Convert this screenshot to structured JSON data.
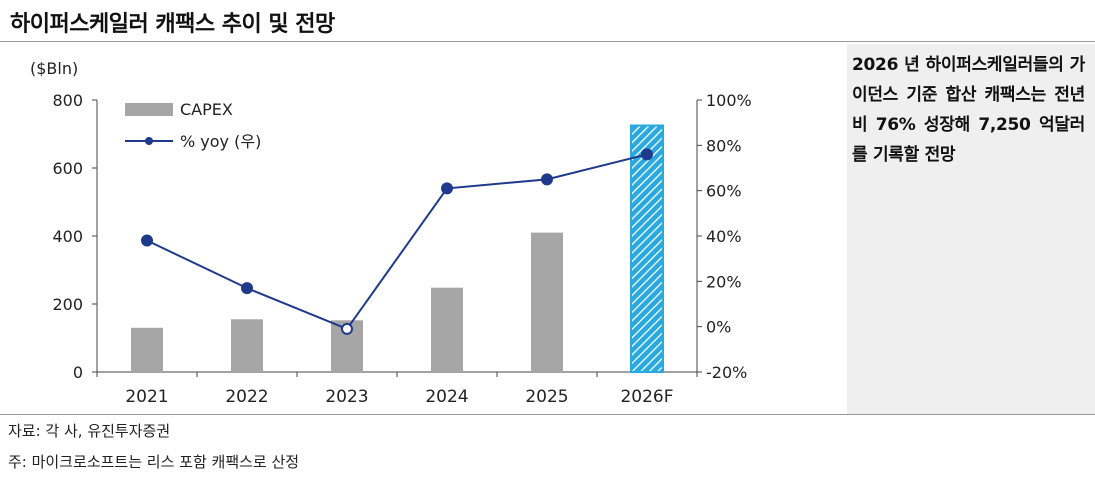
{
  "title": "하이퍼스케일러 캐팩스 추이 및 전망",
  "side_note": "2026 년 하이퍼스케일러들의 가이던스 기준 합산 캐팩스는 전년비 76% 성장해 7,250 억달러를 기록할 전망",
  "source": "자료: 각 사, 유진투자증권",
  "footnote": "주: 마이크로소프트는 리스 포함 캐팩스로 산정",
  "chart_data": {
    "type": "bar",
    "categories": [
      "2021",
      "2022",
      "2023",
      "2024",
      "2025",
      "2026F"
    ],
    "series": [
      {
        "name": "CAPEX",
        "type": "bar",
        "axis": "left",
        "values": [
          130,
          155,
          152,
          248,
          410,
          725
        ],
        "color": "#a6a6a6",
        "forecast_color": "#29a9e0"
      },
      {
        "name": "% yoy (우)",
        "type": "line",
        "axis": "right",
        "values": [
          38,
          17,
          -1,
          61,
          65,
          76
        ],
        "color": "#1f3a8c"
      }
    ],
    "ylabel": "($Bln)",
    "ylim": [
      0,
      800
    ],
    "yticks": [
      "0",
      "200",
      "400",
      "600",
      "800"
    ],
    "y2lim": [
      -20,
      100
    ],
    "y2ticks": [
      "-20%",
      "0%",
      "20%",
      "40%",
      "60%",
      "80%",
      "100%"
    ],
    "grid": false,
    "legend": "top-left"
  }
}
